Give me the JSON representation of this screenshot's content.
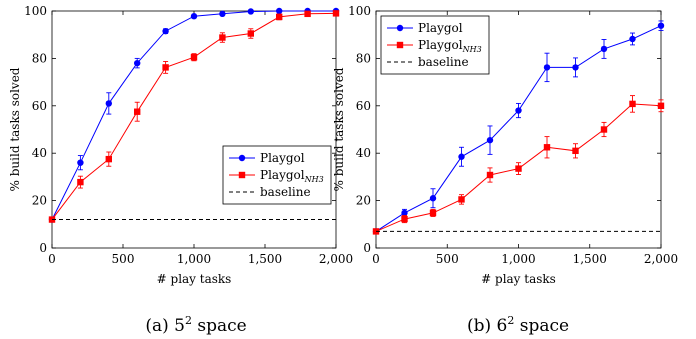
{
  "chart_data": [
    {
      "type": "line",
      "caption": "(a) 5",
      "caption_sup": "2",
      "caption_tail": " space",
      "xlabel": "# play tasks",
      "ylabel": "% build tasks solved",
      "xlim": [
        0,
        2000
      ],
      "ylim": [
        0,
        100
      ],
      "xticks": [
        0,
        500,
        1000,
        1500,
        2000
      ],
      "xtick_labels": [
        "0",
        "500",
        "1,000",
        "1,500",
        "2,000"
      ],
      "yticks": [
        0,
        20,
        40,
        60,
        80,
        100
      ],
      "ytick_labels": [
        "0",
        "20",
        "40",
        "60",
        "80",
        "100"
      ],
      "legend": "lower-right",
      "x": [
        0,
        200,
        400,
        600,
        800,
        1000,
        1200,
        1400,
        1600,
        1800,
        2000
      ],
      "series": [
        {
          "name": "Playgol",
          "sub": "",
          "color": "#0000ff",
          "marker": "circle",
          "values": [
            12,
            36,
            61,
            78,
            91.5,
            97.8,
            98.8,
            99.8,
            100,
            100,
            100
          ],
          "errors": [
            0,
            3,
            4.5,
            2,
            1,
            0.8,
            0.6,
            0.4,
            0,
            0,
            0
          ]
        },
        {
          "name": "Playgol",
          "sub": "NH3",
          "color": "#ff0000",
          "marker": "square",
          "values": [
            12,
            27.8,
            37.5,
            57.5,
            76.2,
            80.5,
            88.8,
            90.5,
            97.5,
            98.8,
            99
          ],
          "errors": [
            0,
            2.5,
            3,
            4,
            2.5,
            1.5,
            2,
            2,
            1.2,
            1,
            0.8
          ]
        },
        {
          "name": "baseline",
          "sub": "",
          "color": "#000000",
          "marker": "dashed",
          "constant": 12
        }
      ]
    },
    {
      "type": "line",
      "caption": "(b) 6",
      "caption_sup": "2",
      "caption_tail": " space",
      "xlabel": "# play tasks",
      "ylabel": "% build tasks solved",
      "xlim": [
        0,
        2000
      ],
      "ylim": [
        0,
        100
      ],
      "xticks": [
        0,
        500,
        1000,
        1500,
        2000
      ],
      "xtick_labels": [
        "0",
        "500",
        "1,000",
        "1,500",
        "2,000"
      ],
      "yticks": [
        0,
        20,
        40,
        60,
        80,
        100
      ],
      "ytick_labels": [
        "0",
        "20",
        "40",
        "60",
        "80",
        "100"
      ],
      "legend": "top-left",
      "x": [
        0,
        200,
        400,
        600,
        800,
        1000,
        1200,
        1400,
        1600,
        1800,
        2000
      ],
      "series": [
        {
          "name": "Playgol",
          "sub": "",
          "color": "#0000ff",
          "marker": "circle",
          "values": [
            7,
            14.8,
            21,
            38.5,
            45.5,
            58,
            76.2,
            76.2,
            84,
            88.2,
            93.8
          ],
          "errors": [
            0,
            1.5,
            4,
            4,
            6,
            3,
            6,
            4,
            4,
            2.5,
            2
          ]
        },
        {
          "name": "Playgol",
          "sub": "NH3",
          "color": "#ff0000",
          "marker": "square",
          "values": [
            7,
            12.2,
            14.8,
            20.5,
            30.8,
            33.5,
            42.5,
            41,
            50,
            60.8,
            60
          ],
          "errors": [
            0,
            1.5,
            1.5,
            2,
            3,
            2.5,
            4.5,
            3,
            3,
            3.5,
            2.5
          ]
        },
        {
          "name": "baseline",
          "sub": "",
          "color": "#000000",
          "marker": "dashed",
          "constant": 7
        }
      ]
    }
  ]
}
